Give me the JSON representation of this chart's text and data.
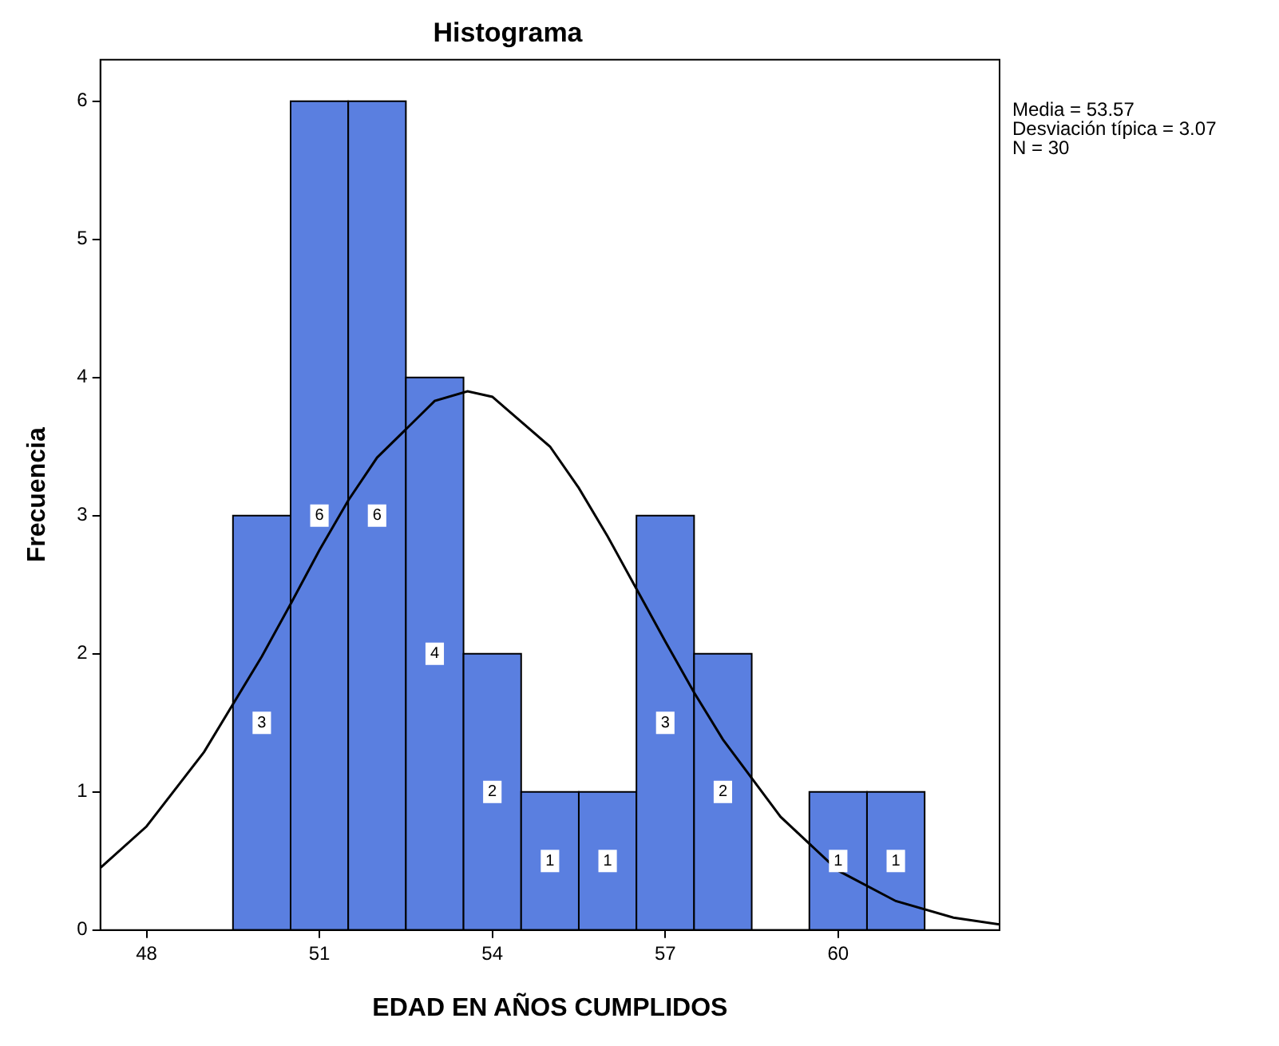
{
  "chart_data": {
    "type": "histogram",
    "title": "Histograma",
    "xlabel": "EDAD EN AÑOS CUMPLIDOS",
    "ylabel": "Frecuencia",
    "bins": [
      49.5,
      50.5,
      51.5,
      52.5,
      53.5,
      54.5,
      55.5,
      56.5,
      57.5,
      58.5,
      59.5,
      60.5,
      61.5
    ],
    "series": [
      {
        "color": "#5a7fe0",
        "values": [
          3,
          6,
          6,
          4,
          2,
          1,
          1,
          3,
          2,
          0,
          1,
          1
        ],
        "value_labels": [
          "3",
          "6",
          "6",
          "4",
          "2",
          "1",
          "1",
          "3",
          "2",
          null,
          "1",
          "1"
        ]
      },
      {
        "type": "line",
        "color": "#000000",
        "x": [
          47.2,
          48,
          49,
          50,
          50.5,
          51,
          51.5,
          52,
          53,
          53.57,
          54,
          55,
          55.5,
          56,
          56.5,
          57,
          57.5,
          58,
          59,
          60,
          61,
          62,
          62.8
        ],
        "values": [
          0.45,
          0.75,
          1.29,
          1.98,
          2.36,
          2.75,
          3.11,
          3.42,
          3.83,
          3.9,
          3.86,
          3.5,
          3.2,
          2.85,
          2.47,
          2.09,
          1.72,
          1.38,
          0.82,
          0.43,
          0.21,
          0.09,
          0.04
        ]
      }
    ],
    "xlim": [
      47.2,
      62.8
    ],
    "xticks": [
      48,
      51,
      54,
      57,
      60
    ],
    "ylim": [
      0,
      6.3
    ],
    "yticks": [
      0,
      1,
      2,
      3,
      4,
      5,
      6
    ],
    "grid": false,
    "legend": false,
    "marker": "none",
    "annotations": [
      "Media = 53.57",
      "Desviación típica = 3.07",
      "N = 30"
    ]
  }
}
